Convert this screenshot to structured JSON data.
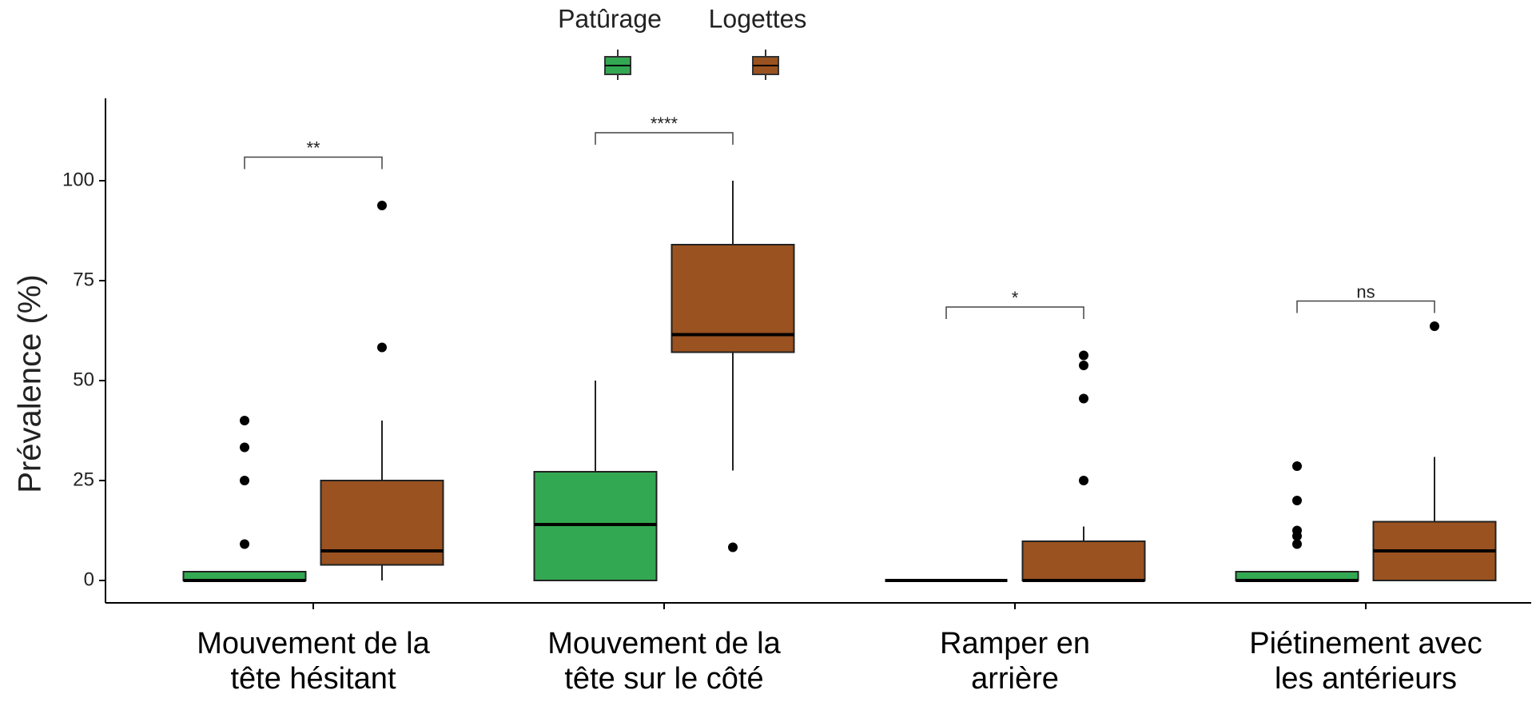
{
  "chart_data": {
    "type": "box",
    "y_label": "Prévalence (%)",
    "categories": [
      "Mouvement de la\ntête hésitant",
      "Mouvement de la\ntête sur le côté",
      "Ramper en\narrière",
      "Piétinement avec\nles antérieurs"
    ],
    "series": [
      {
        "name": "Patûrage",
        "color": "#33a852",
        "min": [
          0,
          0,
          0,
          0
        ],
        "q1": [
          0,
          0,
          0,
          0
        ],
        "median": [
          0,
          14,
          0,
          0
        ],
        "q3": [
          2.2,
          27.2,
          0,
          2.2
        ],
        "max": [
          2.2,
          50,
          0,
          2.2
        ],
        "outliers": [
          [
            9.1,
            25,
            33.3,
            40
          ],
          [],
          [],
          [
            9.1,
            11.1,
            12.5,
            20,
            28.6
          ]
        ]
      },
      {
        "name": "Logettes",
        "color": "#9a5220",
        "min": [
          0,
          27.5,
          0,
          0
        ],
        "q1": [
          3.9,
          57.1,
          0,
          0
        ],
        "median": [
          7.4,
          61.5,
          0,
          7.4
        ],
        "q3": [
          25,
          84,
          9.8,
          14.7
        ],
        "max": [
          40,
          100,
          13.5,
          30.9
        ],
        "outliers": [
          [
            58.3,
            93.8
          ],
          [
            8.3
          ],
          [
            25,
            45.5,
            53.8,
            56.3
          ],
          [
            63.6
          ]
        ]
      }
    ],
    "comparisons": [
      {
        "label": "**",
        "y": 105.9
      },
      {
        "label": "****",
        "y": 112
      },
      {
        "label": "*",
        "y": 68.4
      },
      {
        "label": "ns",
        "y": 69.9
      }
    ],
    "ylim": [
      -5.6,
      120.6
    ],
    "yticks": [
      0,
      25,
      50,
      75,
      100
    ],
    "grid": false
  }
}
